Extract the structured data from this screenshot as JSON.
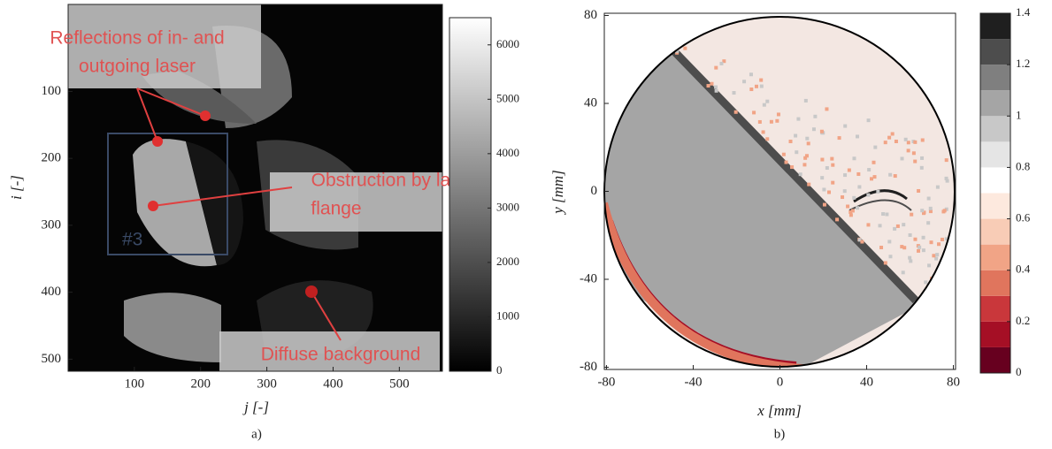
{
  "chart_data": [
    {
      "type": "image",
      "panel_label": "a)",
      "x_label": "j [-]",
      "y_label": "i [-]",
      "xlim": [
        0,
        565
      ],
      "ylim": [
        -30,
        518
      ],
      "y_reversed": true,
      "xticks": [
        100,
        200,
        300,
        400,
        500
      ],
      "yticks": [
        100,
        200,
        300,
        400,
        500
      ],
      "colorbar": {
        "lim": [
          0,
          6500
        ],
        "ticks": [
          0,
          1000,
          2000,
          3000,
          4000,
          5000,
          6000
        ],
        "colors": [
          "#000000",
          "#ffffff"
        ]
      },
      "annotations": [
        {
          "lines": [
            "Reflections of in- and",
            "outgoing laser"
          ]
        },
        {
          "lines": [
            "Obstruction by laser",
            "flange"
          ]
        },
        {
          "lines": [
            "Diffuse background"
          ]
        },
        {
          "lines": [
            "#3"
          ]
        }
      ]
    },
    {
      "type": "heatmap",
      "panel_label": "b)",
      "x_label": "x [mm]",
      "y_label": "y [mm]",
      "xlim": [
        -81,
        81
      ],
      "ylim": [
        -81,
        81
      ],
      "xticks": [
        -80,
        -40,
        0,
        40,
        80
      ],
      "yticks": [
        -80,
        -40,
        0,
        40,
        80
      ],
      "colorbar": {
        "lim": [
          0,
          1.4
        ],
        "ticks": [
          0,
          0.2,
          0.4,
          0.6,
          0.8,
          1,
          1.2,
          1.4
        ],
        "levels": [
          0,
          0.1,
          0.2,
          0.3,
          0.4,
          0.5,
          0.6,
          0.7,
          0.8,
          0.9,
          1,
          1.1,
          1.2,
          1.3,
          1.4
        ],
        "colors": [
          "#67001f",
          "#a50f25",
          "#c9373b",
          "#e0755d",
          "#f1a486",
          "#f8ccb6",
          "#fde9de",
          "#ffffff",
          "#e5e5e5",
          "#c8c8c8",
          "#a5a5a5",
          "#7f7f7f",
          "#4d4d4d",
          "#1f1f1f"
        ]
      }
    }
  ]
}
